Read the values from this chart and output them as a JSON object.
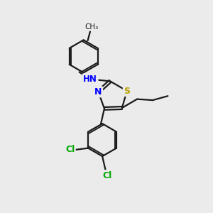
{
  "background_color": "#ebebeb",
  "bond_color": "#1a1a1a",
  "nitrogen_color": "#0000ff",
  "sulfur_color": "#b8a000",
  "chlorine_color": "#00aa00",
  "atom_bg_color": "#ebebeb",
  "line_width": 1.6,
  "dpi": 100,
  "figsize": [
    3.0,
    3.0
  ],
  "xlim": [
    0,
    10
  ],
  "ylim": [
    0,
    10
  ]
}
